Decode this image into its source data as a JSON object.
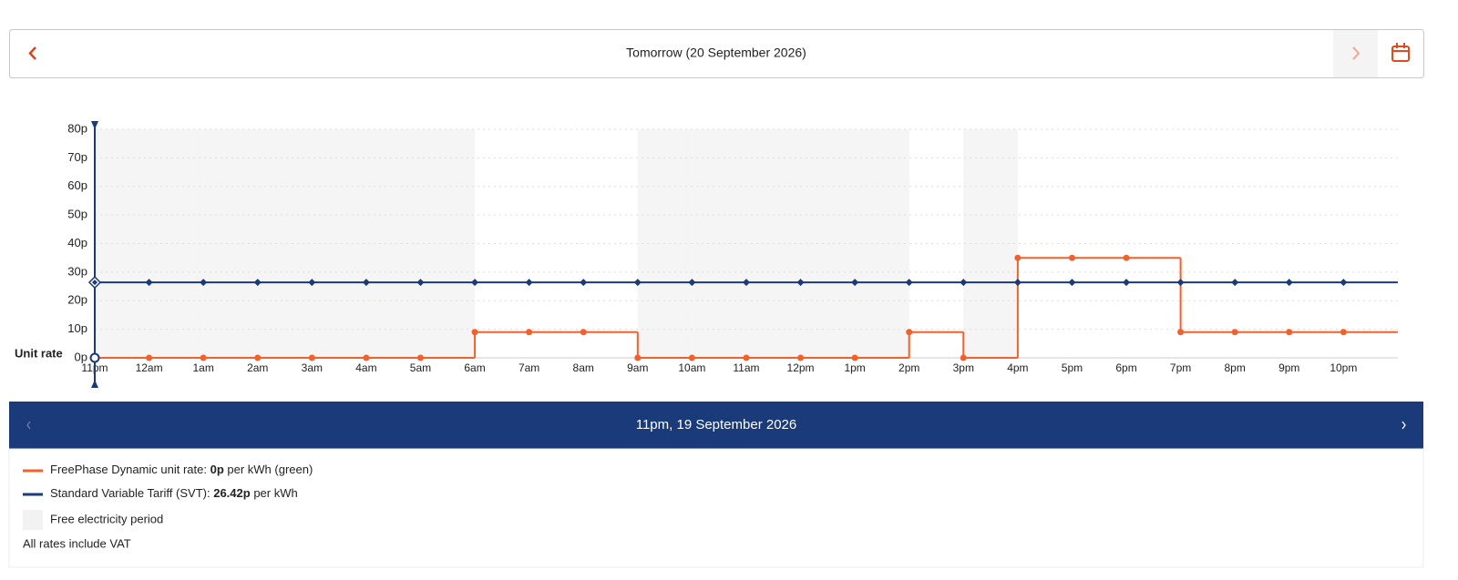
{
  "header": {
    "date_label": "Tomorrow (20 September 2026)"
  },
  "chart_data": {
    "type": "line",
    "step": true,
    "y_label": "Unit rate",
    "categories": [
      "11pm",
      "12am",
      "1am",
      "2am",
      "3am",
      "4am",
      "5am",
      "6am",
      "7am",
      "8am",
      "9am",
      "10am",
      "11am",
      "12pm",
      "1pm",
      "2pm",
      "3pm",
      "4pm",
      "5pm",
      "6pm",
      "7pm",
      "8pm",
      "9pm",
      "10pm"
    ],
    "free_period": [
      true,
      true,
      true,
      true,
      true,
      true,
      true,
      false,
      false,
      false,
      true,
      true,
      true,
      true,
      true,
      false,
      true,
      false,
      false,
      false,
      false,
      false,
      false,
      false
    ],
    "free_color": "#f5f5f5",
    "series": [
      {
        "name": "FreePhase Dynamic unit rate:",
        "color": "#f4602a",
        "marker": "circle",
        "values": [
          0,
          0,
          0,
          0,
          0,
          0,
          0,
          9,
          9,
          9,
          0,
          0,
          0,
          0,
          0,
          9,
          0,
          35,
          35,
          35,
          9,
          9,
          9,
          9
        ]
      },
      {
        "name": "Standard Variable Tariff (SVT):",
        "color": "#1b3a7a",
        "marker": "diamond",
        "values": [
          26.42,
          26.42,
          26.42,
          26.42,
          26.42,
          26.42,
          26.42,
          26.42,
          26.42,
          26.42,
          26.42,
          26.42,
          26.42,
          26.42,
          26.42,
          26.42,
          26.42,
          26.42,
          26.42,
          26.42,
          26.42,
          26.42,
          26.42,
          26.42
        ]
      }
    ],
    "ylim": [
      0,
      80
    ],
    "yticks": [
      {
        "value": 0,
        "label": "0p"
      },
      {
        "value": 10,
        "label": "10p"
      },
      {
        "value": 20,
        "label": "20p"
      },
      {
        "value": 30,
        "label": "30p"
      },
      {
        "value": 40,
        "label": "40p"
      },
      {
        "value": 50,
        "label": "50p"
      },
      {
        "value": 60,
        "label": "60p"
      },
      {
        "value": 70,
        "label": "70p"
      },
      {
        "value": 80,
        "label": "80p"
      }
    ],
    "grid": true
  },
  "readout": {
    "title": "11pm, 19 September 2026",
    "rows": [
      {
        "value_label": "0p",
        "suffix": "per kWh (green)"
      },
      {
        "value_label": "26.42p",
        "suffix": "per kWh"
      }
    ],
    "free_label": "Free electricity period",
    "note": "All rates include VAT"
  }
}
